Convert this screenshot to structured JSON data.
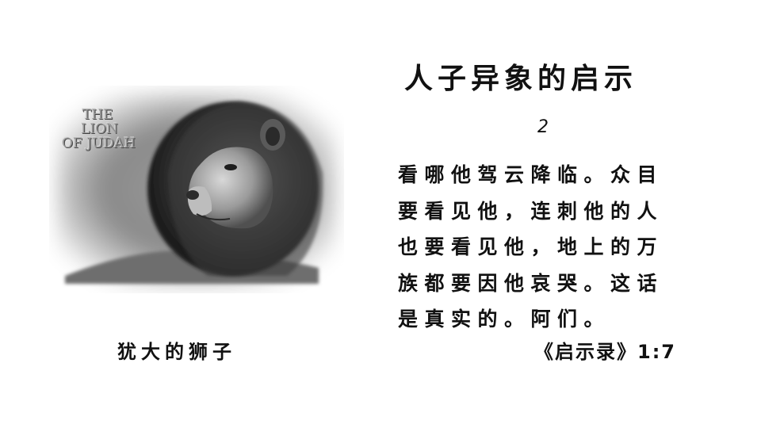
{
  "image": {
    "overlay_text": [
      "THE",
      "LION",
      "OF JUDAH"
    ],
    "caption": "犹大的狮子"
  },
  "title": "人子异象的启示",
  "sub_number": "2",
  "verse": {
    "lines": [
      "看哪他驾云降临。众目",
      "要看见他，连刺他的人",
      "也要看见他，地上的万",
      "族都要因他哀哭。这话",
      "是真实的。阿们。"
    ],
    "reference": "《启示录》1:7"
  }
}
